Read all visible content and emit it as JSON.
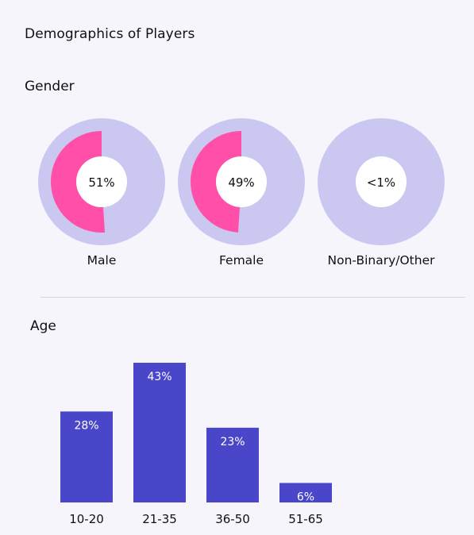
{
  "title": "Demographics of Players",
  "gender": {
    "title": "Gender",
    "items": [
      {
        "label": "Male",
        "value_text": "51%",
        "fraction": 0.51
      },
      {
        "label": "Female",
        "value_text": "49%",
        "fraction": 0.49
      },
      {
        "label": "Non-Binary/Other",
        "value_text": "<1%",
        "fraction": 0.0
      }
    ]
  },
  "age": {
    "title": "Age"
  },
  "colors": {
    "background": "#f6f5fc",
    "donut_track": "#cac8f0",
    "donut_fill": "#ff4fa8",
    "bar": "#4a46c9",
    "bar_label": "#ffffff",
    "divider": "#d6d6dc"
  },
  "chart_data": [
    {
      "type": "pie",
      "title": "Gender",
      "categories": [
        "Male",
        "Female",
        "Non-Binary/Other"
      ],
      "values": [
        51,
        49,
        1
      ],
      "value_labels": [
        "51%",
        "49%",
        "<1%"
      ]
    },
    {
      "type": "bar",
      "title": "Age",
      "categories": [
        "10-20",
        "21-35",
        "36-50",
        "51-65"
      ],
      "values": [
        28,
        43,
        23,
        6
      ],
      "value_labels": [
        "28%",
        "43%",
        "23%",
        "6%"
      ],
      "ylim": [
        0,
        43
      ],
      "grid": false
    }
  ]
}
